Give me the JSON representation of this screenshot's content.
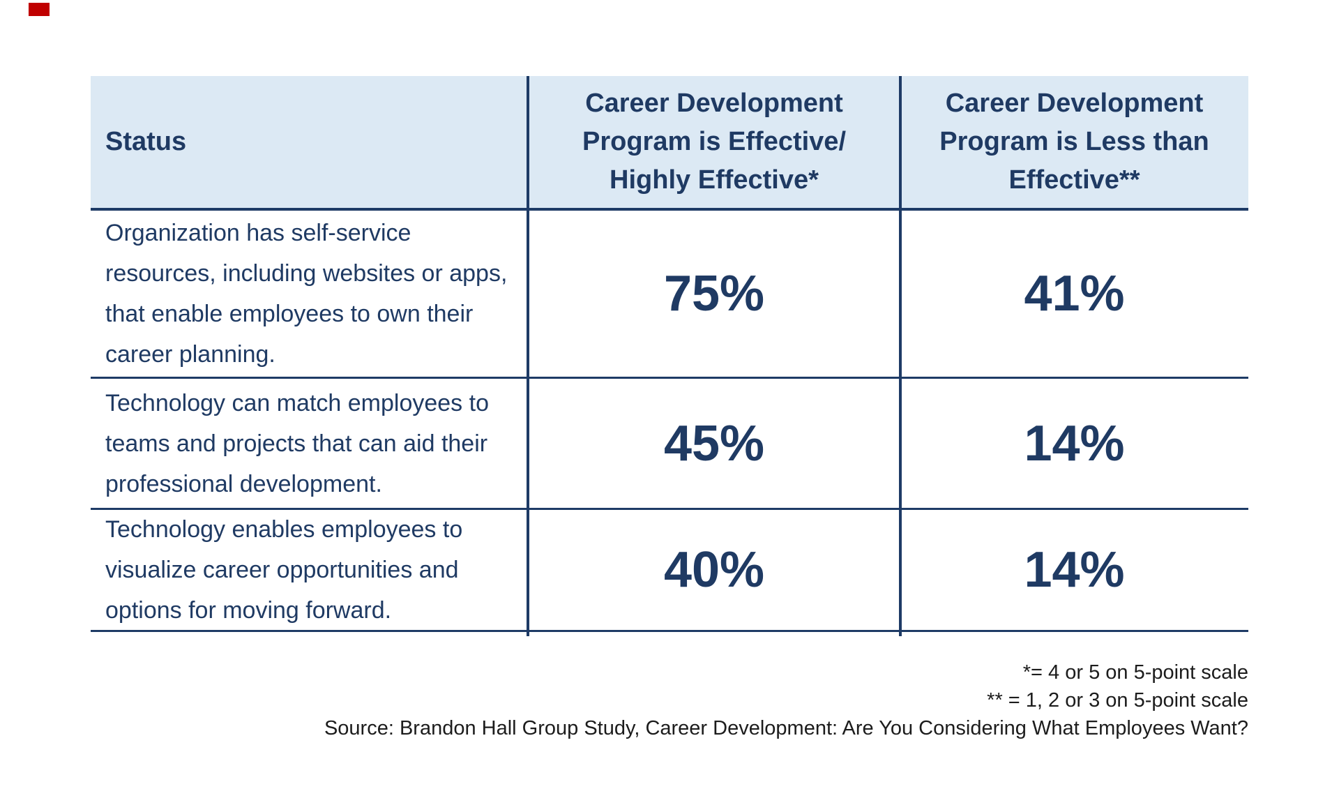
{
  "page": {
    "background_color": "#ffffff",
    "accent_mark_color": "#c00000"
  },
  "table": {
    "header_bg_color": "#dce9f4",
    "text_color": "#1f3a63",
    "line_color": "#1e3b66",
    "header": {
      "status_label": "Status",
      "effective_lines": [
        "Career Development",
        "Program is Effective/",
        "Highly Effective*"
      ],
      "less_effective_lines": [
        "Career Development",
        "Program is Less than",
        "Effective**"
      ]
    },
    "rows": [
      {
        "status_lines": [
          "Organization has self-service",
          "resources, including websites or apps,",
          "that enable employees to own their",
          "career planning."
        ],
        "effective": "75%",
        "less_effective": "41%"
      },
      {
        "status_lines": [
          "Technology can match employees to",
          "teams and projects that can aid their",
          "professional development."
        ],
        "effective": "45%",
        "less_effective": "14%"
      },
      {
        "status_lines": [
          "Technology enables employees to",
          "visualize career opportunities and",
          "options for moving forward."
        ],
        "effective": "40%",
        "less_effective": "14%"
      }
    ]
  },
  "footnotes": {
    "note1": "*= 4 or 5 on 5-point scale",
    "note2": "** = 1, 2 or 3 on 5-point scale",
    "source": "Source: Brandon Hall Group Study, Career Development: Are You Considering What Employees Want?"
  },
  "chart_data": {
    "type": "table",
    "title": "",
    "columns": [
      "Status",
      "Career Development Program is Effective/ Highly Effective*",
      "Career Development Program is Less than Effective**"
    ],
    "rows": [
      [
        "Organization has self-service resources, including websites or apps, that enable employees to own their career planning.",
        "75%",
        "41%"
      ],
      [
        "Technology can match employees to teams and projects that can aid their professional development.",
        "45%",
        "14%"
      ],
      [
        "Technology enables employees to visualize career opportunities and options for moving forward.",
        "40%",
        "14%"
      ]
    ],
    "values_numeric": {
      "effective_highly_effective_pct": [
        75,
        45,
        40
      ],
      "less_than_effective_pct": [
        41,
        14,
        14
      ]
    },
    "footnotes": [
      "*= 4 or 5 on 5-point scale",
      "** = 1, 2 or 3 on 5-point scale"
    ],
    "source": "Source: Brandon Hall Group Study, Career Development: Are You Considering What Employees Want?"
  }
}
